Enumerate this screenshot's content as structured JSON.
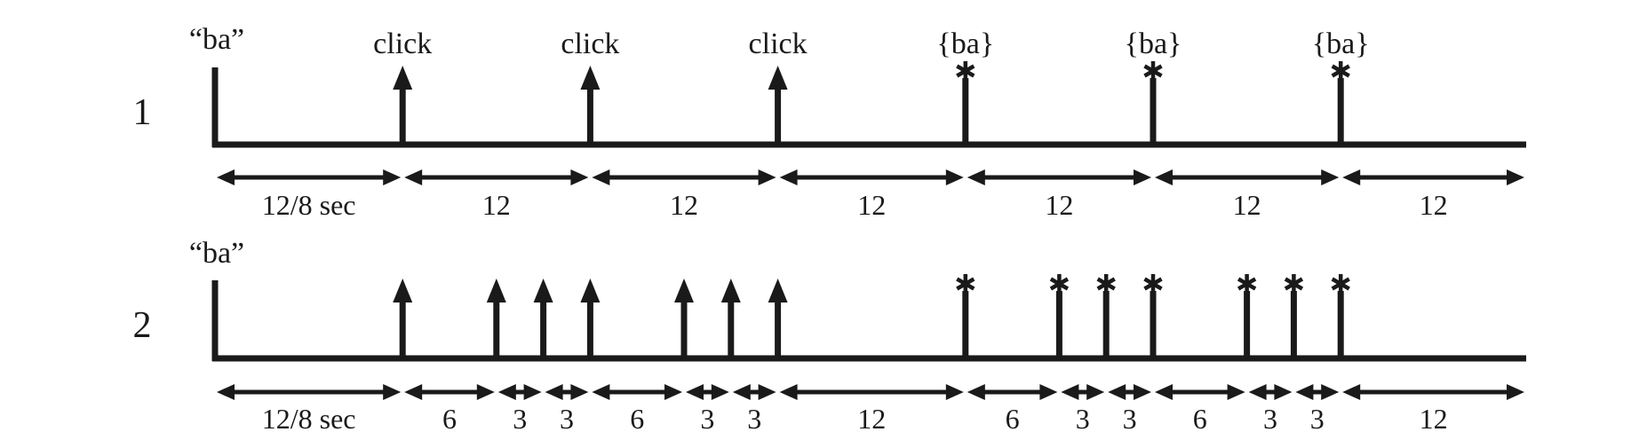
{
  "colors": {
    "ink": "#1a1a1a",
    "background": "#ffffff"
  },
  "rows": [
    {
      "id": "1",
      "label": "1",
      "start_label": "“ba”",
      "events": [
        {
          "t": 12,
          "kind": "arrow",
          "label": "click"
        },
        {
          "t": 24,
          "kind": "arrow",
          "label": "click"
        },
        {
          "t": 36,
          "kind": "arrow",
          "label": "click"
        },
        {
          "t": 48,
          "kind": "star",
          "label": "{ba}"
        },
        {
          "t": 60,
          "kind": "star",
          "label": "{ba}"
        },
        {
          "t": 72,
          "kind": "star",
          "label": "{ba}"
        }
      ],
      "intervals": [
        {
          "from": 0,
          "to": 12,
          "label": "12/8 sec"
        },
        {
          "from": 12,
          "to": 24,
          "label": "12"
        },
        {
          "from": 24,
          "to": 36,
          "label": "12"
        },
        {
          "from": 36,
          "to": 48,
          "label": "12"
        },
        {
          "from": 48,
          "to": 60,
          "label": "12"
        },
        {
          "from": 60,
          "to": 72,
          "label": "12"
        },
        {
          "from": 72,
          "to": 84,
          "label": "12"
        }
      ]
    },
    {
      "id": "2",
      "label": "2",
      "start_label": "“ba”",
      "events": [
        {
          "t": 12,
          "kind": "arrow",
          "label": ""
        },
        {
          "t": 18,
          "kind": "arrow",
          "label": ""
        },
        {
          "t": 21,
          "kind": "arrow",
          "label": ""
        },
        {
          "t": 24,
          "kind": "arrow",
          "label": ""
        },
        {
          "t": 30,
          "kind": "arrow",
          "label": ""
        },
        {
          "t": 33,
          "kind": "arrow",
          "label": ""
        },
        {
          "t": 36,
          "kind": "arrow",
          "label": ""
        },
        {
          "t": 48,
          "kind": "star",
          "label": ""
        },
        {
          "t": 54,
          "kind": "star",
          "label": ""
        },
        {
          "t": 57,
          "kind": "star",
          "label": ""
        },
        {
          "t": 60,
          "kind": "star",
          "label": ""
        },
        {
          "t": 66,
          "kind": "star",
          "label": ""
        },
        {
          "t": 69,
          "kind": "star",
          "label": ""
        },
        {
          "t": 72,
          "kind": "star",
          "label": ""
        }
      ],
      "intervals": [
        {
          "from": 0,
          "to": 12,
          "label": "12/8 sec"
        },
        {
          "from": 12,
          "to": 18,
          "label": "6"
        },
        {
          "from": 18,
          "to": 21,
          "label": "3"
        },
        {
          "from": 21,
          "to": 24,
          "label": "3"
        },
        {
          "from": 24,
          "to": 30,
          "label": "6"
        },
        {
          "from": 30,
          "to": 33,
          "label": "3"
        },
        {
          "from": 33,
          "to": 36,
          "label": "3"
        },
        {
          "from": 36,
          "to": 48,
          "label": "12"
        },
        {
          "from": 48,
          "to": 54,
          "label": "6"
        },
        {
          "from": 54,
          "to": 57,
          "label": "3"
        },
        {
          "from": 57,
          "to": 60,
          "label": "3"
        },
        {
          "from": 60,
          "to": 66,
          "label": "6"
        },
        {
          "from": 66,
          "to": 69,
          "label": "3"
        },
        {
          "from": 69,
          "to": 72,
          "label": "3"
        },
        {
          "from": 72,
          "to": 84,
          "label": "12"
        }
      ]
    }
  ]
}
